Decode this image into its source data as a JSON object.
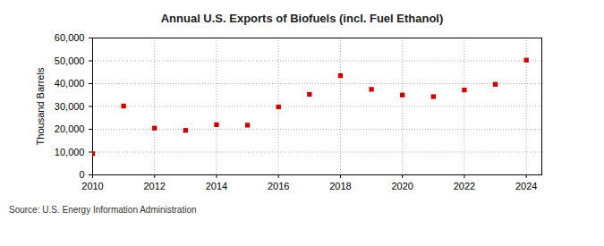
{
  "chart_data": {
    "type": "scatter",
    "title": "Annual U.S. Exports of Biofuels (incl. Fuel Ethanol)",
    "y_label": "Thousand Barrels",
    "source": "Source: U.S. Energy Information Administration",
    "x": [
      2010,
      2011,
      2012,
      2013,
      2014,
      2015,
      2016,
      2017,
      2018,
      2019,
      2020,
      2021,
      2022,
      2023,
      2024
    ],
    "values": [
      9300,
      30200,
      20500,
      19500,
      22000,
      21800,
      29800,
      35300,
      43500,
      37500,
      35000,
      34300,
      37200,
      39700,
      50300
    ],
    "color": "#cc0000",
    "marker": "square",
    "xlim": [
      2010,
      2024.5
    ],
    "xticks": [
      2010,
      2012,
      2014,
      2016,
      2018,
      2020,
      2022,
      2024
    ],
    "ylim": [
      0,
      60000
    ],
    "yticks": [
      0,
      {
        "value": 10000,
        "label": "10,000"
      },
      {
        "value": 20000,
        "label": "20,000"
      },
      {
        "value": 30000,
        "label": "30,000"
      },
      {
        "value": 40000,
        "label": "40,000"
      },
      {
        "value": 50000,
        "label": "50,000"
      },
      {
        "value": 60000,
        "label": "60,000"
      }
    ],
    "grid": true
  }
}
